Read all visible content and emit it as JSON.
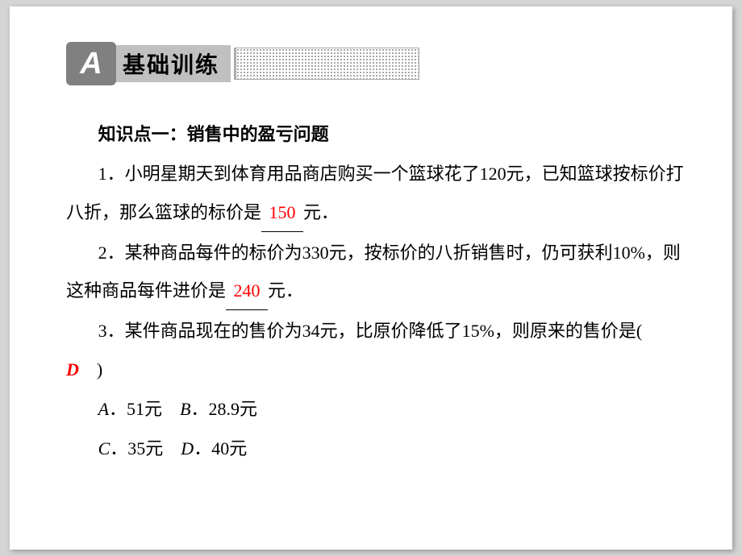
{
  "header": {
    "badge_letter": "A",
    "title": "基础训练"
  },
  "knowledge_point": "知识点一：销售中的盈亏问题",
  "q1": {
    "part1": "1．小明星期天到体育用品商店购买一个篮球花了120元，已知篮球按标价打八折，那么篮球的标价是",
    "answer": "150",
    "part2": "元．"
  },
  "q2": {
    "part1": "2．某种商品每件的标价为330元，按标价的八折销售时，仍可获利10%，则这种商品每件进价是",
    "answer": "240",
    "part2": "元．"
  },
  "q3": {
    "stem": "3．某件商品现在的售价为34元，比原价降低了15%，则原来的售价是(　",
    "answer": "D",
    "stem_end": "　)",
    "optA_letter": "A",
    "optA_text": "．51元　",
    "optB_letter": "B",
    "optB_text": "．28.9元",
    "optC_letter": "C",
    "optC_text": "．35元　",
    "optD_letter": "D",
    "optD_text": "．40元"
  },
  "colors": {
    "page_bg": "#d4d4d4",
    "paper_bg": "#ffffff",
    "badge_bg": "#808080",
    "title_bg": "#c0c0c0",
    "text": "#000000",
    "answer": "#ff0000"
  },
  "typography": {
    "body_fontsize": 22,
    "title_fontsize": 28,
    "line_height": 2.15
  }
}
